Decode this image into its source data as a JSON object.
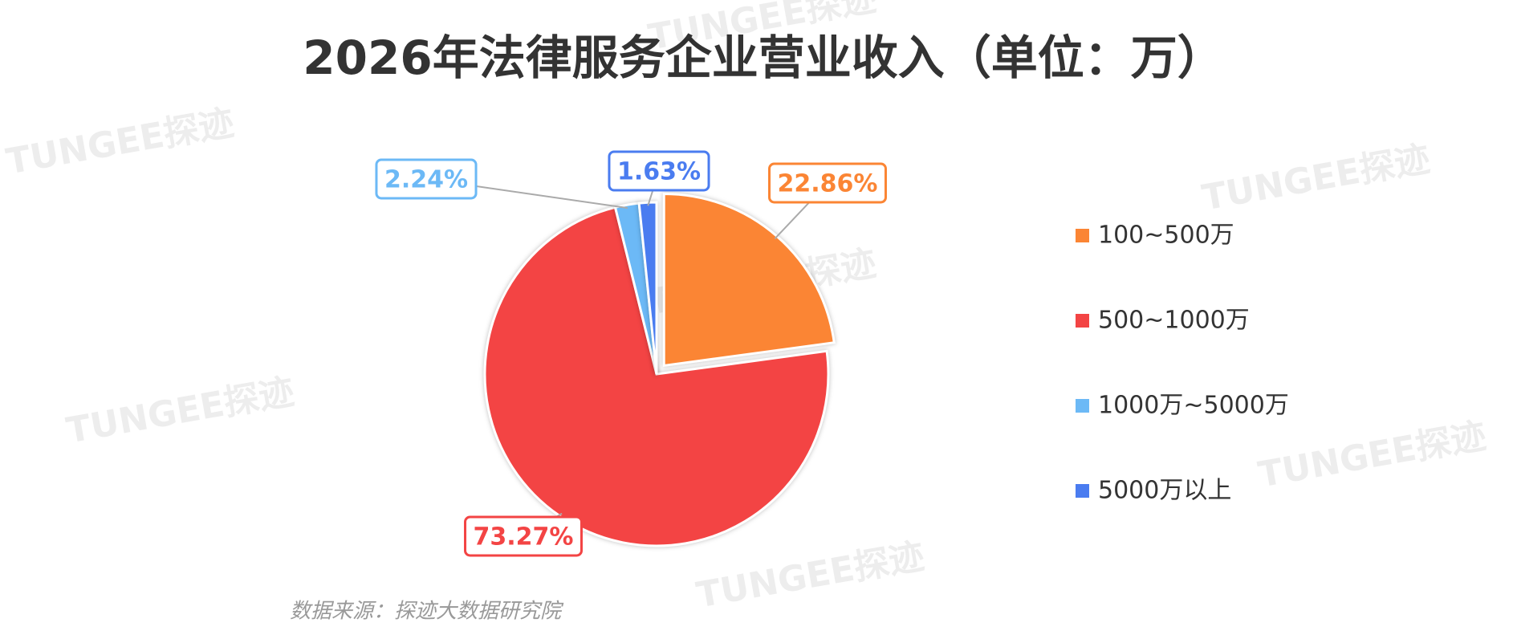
{
  "chart_data": {
    "type": "pie",
    "title": "2026年法律服务企业营业收入（单位：万）",
    "categories": [
      "100~500万",
      "500~1000万",
      "1000万~5000万",
      "5000万以上"
    ],
    "values": [
      22.86,
      73.27,
      2.24,
      1.63
    ],
    "value_labels": [
      "22.86%",
      "73.27%",
      "2.24%",
      "1.63%"
    ],
    "colors": [
      "#fb8534",
      "#f34444",
      "#6cb9f6",
      "#4a7cf0"
    ],
    "legend": "right",
    "source": "数据来源：探迹大数据研究院"
  },
  "watermark": "TUNGEE探迹"
}
